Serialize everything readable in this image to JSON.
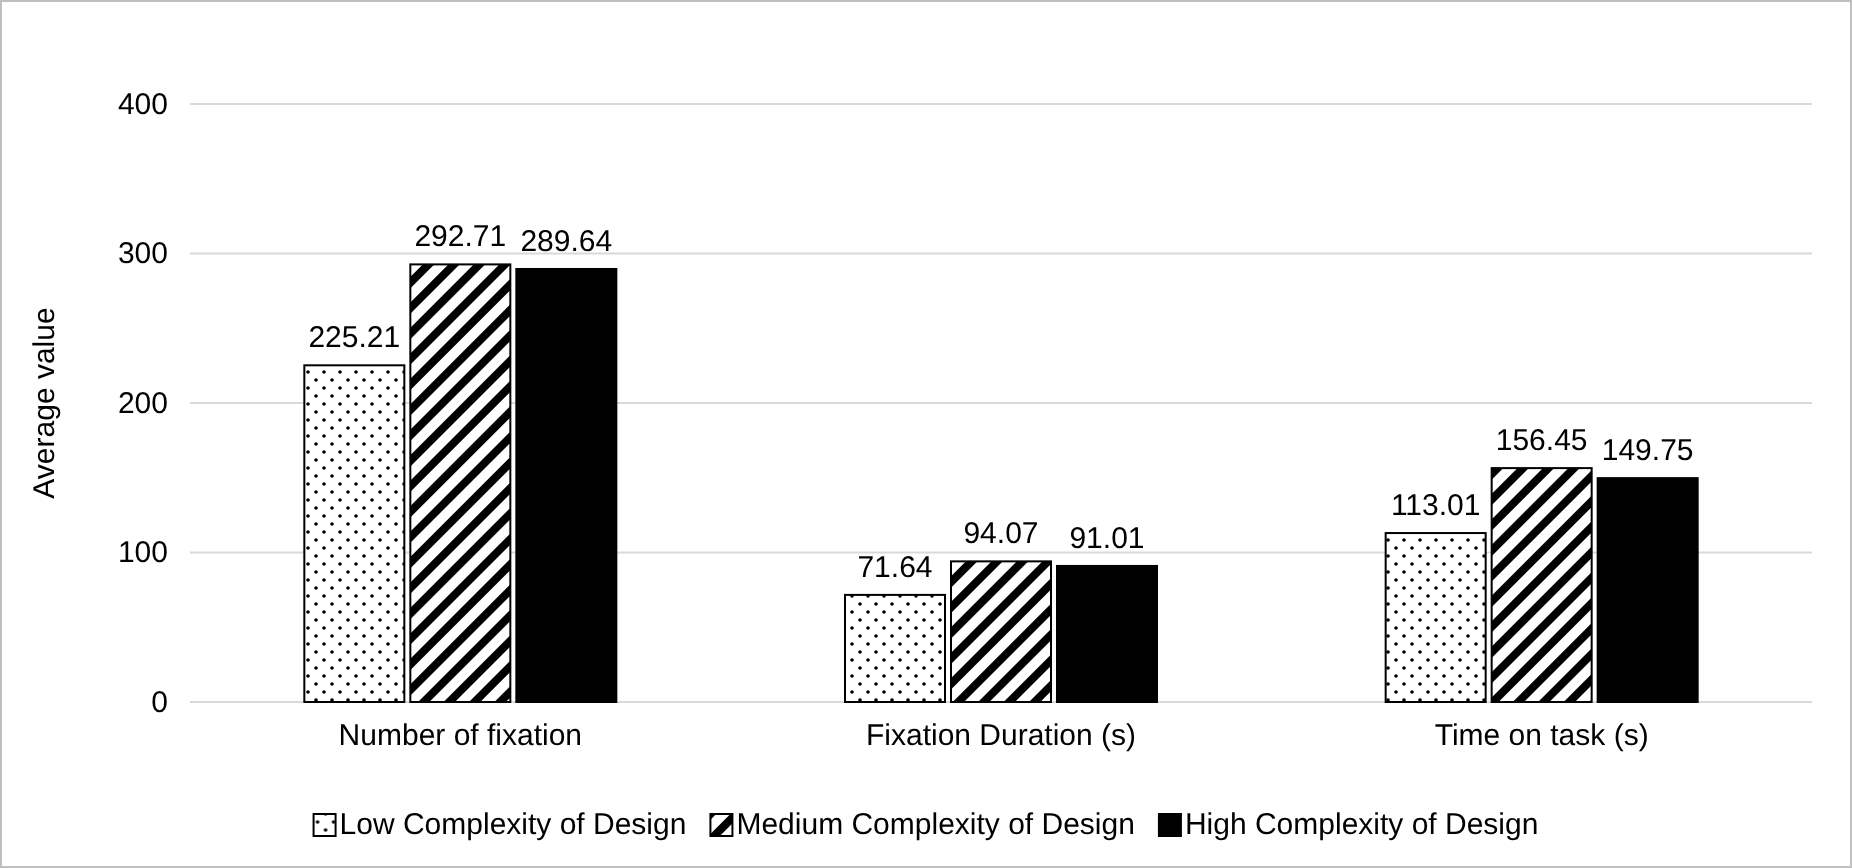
{
  "chart_data": {
    "type": "bar",
    "ylabel": "Average value",
    "categories": [
      "Number of fixation",
      "Fixation Duration (s)",
      "Time on task (s)"
    ],
    "series": [
      {
        "name": "Low Complexity of Design",
        "color": "#000000",
        "values": [
          225.21,
          71.64,
          113.01
        ]
      },
      {
        "name": "Medium Complexity of Design",
        "color": "#000000",
        "values": [
          292.71,
          94.07,
          156.45
        ]
      },
      {
        "name": "High Complexity of Design",
        "color": "#000000",
        "values": [
          289.64,
          91.01,
          149.75
        ]
      }
    ],
    "ylim": [
      0,
      400
    ],
    "yticks": [
      0,
      100,
      200,
      300,
      400
    ],
    "grid": "y",
    "legend": "bottom",
    "data_labels": true
  }
}
